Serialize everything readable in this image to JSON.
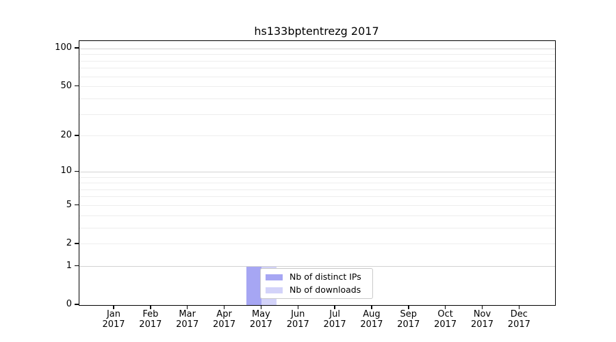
{
  "chart_data": {
    "type": "bar",
    "title": "hs133bptentrezg 2017",
    "yscale": "log10(1+y)",
    "ylim": [
      0,
      115
    ],
    "yticks": [
      100,
      50,
      20,
      10,
      5,
      2,
      1,
      0
    ],
    "major_gridlines": [
      1,
      10,
      100
    ],
    "minor_gridlines": [
      2,
      3,
      4,
      5,
      6,
      7,
      8,
      9,
      20,
      30,
      40,
      50,
      60,
      70,
      80,
      90
    ],
    "grid_on": true,
    "categories": [
      {
        "month": "Jan",
        "year": "2017"
      },
      {
        "month": "Feb",
        "year": "2017"
      },
      {
        "month": "Mar",
        "year": "2017"
      },
      {
        "month": "Apr",
        "year": "2017"
      },
      {
        "month": "May",
        "year": "2017"
      },
      {
        "month": "Jun",
        "year": "2017"
      },
      {
        "month": "Jul",
        "year": "2017"
      },
      {
        "month": "Aug",
        "year": "2017"
      },
      {
        "month": "Sep",
        "year": "2017"
      },
      {
        "month": "Oct",
        "year": "2017"
      },
      {
        "month": "Nov",
        "year": "2017"
      },
      {
        "month": "Dec",
        "year": "2017"
      }
    ],
    "series": [
      {
        "name": "Nb of distinct IPs",
        "color": "#a6a6f3",
        "values": [
          0,
          0,
          0,
          0,
          1,
          0,
          0,
          0,
          0,
          0,
          0,
          0
        ]
      },
      {
        "name": "Nb of downloads",
        "color": "#d3d3f9",
        "values": [
          0,
          0,
          0,
          0,
          1,
          0,
          0,
          0,
          0,
          0,
          0,
          0
        ]
      }
    ],
    "legend": {
      "position": "inside-bottom-center"
    }
  },
  "colors": {
    "background": "#ffffff",
    "axis_frame": "#000000",
    "grid_major": "#d2d2d2",
    "grid_minor": "#ededed",
    "legend_border": "#c9c9c9",
    "text": "#000000"
  }
}
